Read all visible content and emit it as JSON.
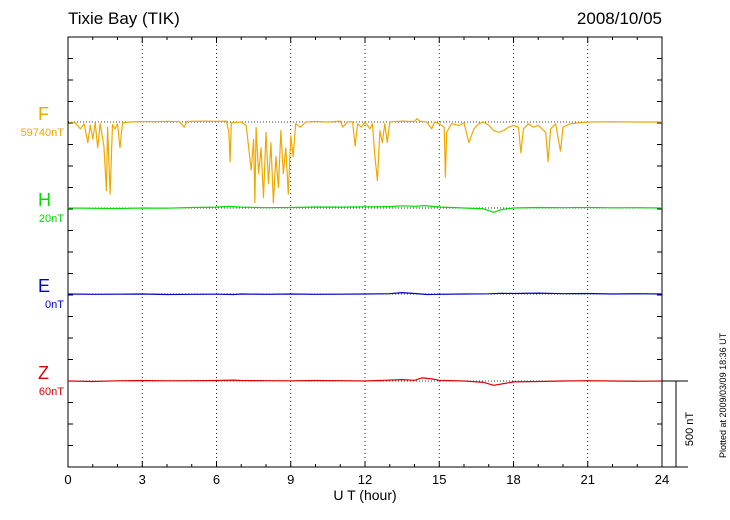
{
  "header": {
    "station": "Tixie Bay (TIK)",
    "date": "2008/10/05",
    "plotted_at": "Plotted at 2009/03/09 18:36 UT"
  },
  "chart_data": {
    "type": "line",
    "xlabel": "U T (hour)",
    "xlim": [
      0,
      24
    ],
    "xticks": [
      0,
      3,
      6,
      9,
      12,
      15,
      18,
      21,
      24
    ],
    "grid": "vertical dotted every 3 hours; dotted baseline per channel",
    "scale_bar": {
      "label": "500 nT",
      "value_nT": 500
    },
    "series": [
      {
        "name": "F",
        "baseline_label": "59740nT",
        "color": "#f0a800",
        "points": [
          [
            0.1,
            0
          ],
          [
            0.3,
            -5
          ],
          [
            0.5,
            -40
          ],
          [
            0.65,
            -10
          ],
          [
            0.8,
            -120
          ],
          [
            0.9,
            -20
          ],
          [
            1.0,
            -100
          ],
          [
            1.1,
            -5
          ],
          [
            1.2,
            -150
          ],
          [
            1.3,
            -10
          ],
          [
            1.45,
            -140
          ],
          [
            1.55,
            -400
          ],
          [
            1.6,
            -30
          ],
          [
            1.7,
            -420
          ],
          [
            1.8,
            -15
          ],
          [
            1.9,
            -40
          ],
          [
            2.0,
            -10
          ],
          [
            2.1,
            -150
          ],
          [
            2.2,
            -5
          ],
          [
            2.5,
            0
          ],
          [
            3.0,
            3
          ],
          [
            3.5,
            2
          ],
          [
            4.0,
            4
          ],
          [
            4.5,
            2
          ],
          [
            4.7,
            -30
          ],
          [
            4.8,
            3
          ],
          [
            5.5,
            5
          ],
          [
            6.0,
            4
          ],
          [
            6.4,
            5
          ],
          [
            6.5,
            -60
          ],
          [
            6.55,
            -230
          ],
          [
            6.6,
            -5
          ],
          [
            7.0,
            0
          ],
          [
            7.2,
            -20
          ],
          [
            7.4,
            -280
          ],
          [
            7.5,
            -100
          ],
          [
            7.55,
            -470
          ],
          [
            7.6,
            -30
          ],
          [
            7.7,
            -300
          ],
          [
            7.8,
            -150
          ],
          [
            7.9,
            -440
          ],
          [
            8.0,
            -60
          ],
          [
            8.1,
            -360
          ],
          [
            8.2,
            -120
          ],
          [
            8.3,
            -470
          ],
          [
            8.4,
            -200
          ],
          [
            8.5,
            -380
          ],
          [
            8.6,
            -50
          ],
          [
            8.7,
            -300
          ],
          [
            8.8,
            -150
          ],
          [
            8.9,
            -420
          ],
          [
            9.0,
            -80
          ],
          [
            9.1,
            -200
          ],
          [
            9.2,
            -10
          ],
          [
            9.4,
            -30
          ],
          [
            9.6,
            0
          ],
          [
            10.0,
            3
          ],
          [
            10.5,
            0
          ],
          [
            11.0,
            5
          ],
          [
            11.1,
            -30
          ],
          [
            11.3,
            2
          ],
          [
            11.5,
            0
          ],
          [
            11.6,
            -140
          ],
          [
            11.7,
            -10
          ],
          [
            11.85,
            -30
          ],
          [
            12.0,
            0
          ],
          [
            12.2,
            -40
          ],
          [
            12.3,
            -10
          ],
          [
            12.4,
            -200
          ],
          [
            12.5,
            -340
          ],
          [
            12.6,
            -50
          ],
          [
            12.7,
            -120
          ],
          [
            12.8,
            -10
          ],
          [
            12.9,
            -120
          ],
          [
            13.0,
            0
          ],
          [
            13.5,
            5
          ],
          [
            14.0,
            3
          ],
          [
            14.1,
            20
          ],
          [
            14.2,
            5
          ],
          [
            14.5,
            0
          ],
          [
            14.7,
            -40
          ],
          [
            14.8,
            0
          ],
          [
            15.0,
            -10
          ],
          [
            15.2,
            -30
          ],
          [
            15.25,
            -320
          ],
          [
            15.3,
            -60
          ],
          [
            15.5,
            -10
          ],
          [
            15.8,
            -20
          ],
          [
            16.0,
            -5
          ],
          [
            16.2,
            -120
          ],
          [
            16.4,
            -40
          ],
          [
            16.6,
            -10
          ],
          [
            16.8,
            0
          ],
          [
            17.0,
            -20
          ],
          [
            17.2,
            -50
          ],
          [
            17.4,
            -60
          ],
          [
            17.6,
            -50
          ],
          [
            17.8,
            -30
          ],
          [
            18.0,
            -20
          ],
          [
            18.2,
            -30
          ],
          [
            18.3,
            -180
          ],
          [
            18.4,
            -40
          ],
          [
            18.6,
            -10
          ],
          [
            18.8,
            -30
          ],
          [
            19.0,
            -20
          ],
          [
            19.3,
            -60
          ],
          [
            19.4,
            -230
          ],
          [
            19.5,
            -40
          ],
          [
            19.7,
            -10
          ],
          [
            19.9,
            -170
          ],
          [
            20.0,
            -30
          ],
          [
            20.3,
            -10
          ],
          [
            20.6,
            -5
          ],
          [
            21.0,
            0
          ],
          [
            22.0,
            2
          ],
          [
            23.0,
            0
          ],
          [
            24.0,
            0
          ]
        ]
      },
      {
        "name": "H",
        "baseline_label": "20nT",
        "color": "#00dd00",
        "points": [
          [
            0,
            0
          ],
          [
            1,
            -2
          ],
          [
            2,
            -3
          ],
          [
            3,
            0
          ],
          [
            4,
            -1
          ],
          [
            5,
            3
          ],
          [
            6,
            5
          ],
          [
            6.5,
            10
          ],
          [
            7,
            5
          ],
          [
            8,
            2
          ],
          [
            9,
            3
          ],
          [
            10,
            6
          ],
          [
            11,
            5
          ],
          [
            12,
            7
          ],
          [
            13,
            8
          ],
          [
            13.5,
            13
          ],
          [
            14,
            10
          ],
          [
            14.4,
            14
          ],
          [
            15,
            6
          ],
          [
            16,
            0
          ],
          [
            16.8,
            -5
          ],
          [
            17.2,
            -25
          ],
          [
            17.5,
            -10
          ],
          [
            18,
            0
          ],
          [
            19,
            3
          ],
          [
            20,
            2
          ],
          [
            21,
            3
          ],
          [
            22,
            1
          ],
          [
            23,
            2
          ],
          [
            24,
            0
          ]
        ]
      },
      {
        "name": "E",
        "baseline_label": "0nT",
        "color": "#0000cc",
        "points": [
          [
            0,
            0
          ],
          [
            1,
            -2
          ],
          [
            2,
            -1
          ],
          [
            3,
            0
          ],
          [
            4,
            -3
          ],
          [
            5,
            -2
          ],
          [
            6,
            -1
          ],
          [
            6.7,
            -3
          ],
          [
            7,
            0
          ],
          [
            8,
            -2
          ],
          [
            9,
            0
          ],
          [
            10,
            -2
          ],
          [
            11,
            -1
          ],
          [
            12,
            0
          ],
          [
            13,
            2
          ],
          [
            13.5,
            8
          ],
          [
            14,
            3
          ],
          [
            14.5,
            -3
          ],
          [
            15,
            -2
          ],
          [
            16,
            0
          ],
          [
            17,
            1
          ],
          [
            17.5,
            4
          ],
          [
            18,
            3
          ],
          [
            19,
            5
          ],
          [
            20,
            2
          ],
          [
            21,
            3
          ],
          [
            22,
            0
          ],
          [
            23,
            2
          ],
          [
            24,
            0
          ]
        ]
      },
      {
        "name": "Z",
        "baseline_label": "60nT",
        "color": "#dd0000",
        "points": [
          [
            0,
            0
          ],
          [
            1,
            -3
          ],
          [
            2,
            1
          ],
          [
            3,
            3
          ],
          [
            4,
            1
          ],
          [
            5,
            2
          ],
          [
            6,
            3
          ],
          [
            6.7,
            5
          ],
          [
            7,
            3
          ],
          [
            8,
            2
          ],
          [
            9,
            1
          ],
          [
            10,
            3
          ],
          [
            11,
            2
          ],
          [
            12,
            0
          ],
          [
            13,
            5
          ],
          [
            13.5,
            8
          ],
          [
            14,
            4
          ],
          [
            14.3,
            18
          ],
          [
            14.7,
            12
          ],
          [
            15,
            4
          ],
          [
            16,
            0
          ],
          [
            16.8,
            -8
          ],
          [
            17.2,
            -25
          ],
          [
            17.6,
            -15
          ],
          [
            18,
            -5
          ],
          [
            19,
            -3
          ],
          [
            20,
            0
          ],
          [
            21,
            2
          ],
          [
            22,
            0
          ],
          [
            23,
            -2
          ],
          [
            24,
            0
          ]
        ]
      }
    ]
  }
}
